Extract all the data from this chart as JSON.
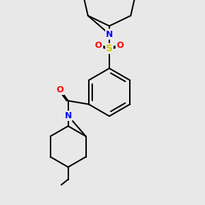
{
  "bg_color": "#e8e8e8",
  "bond_color": "#000000",
  "bond_width": 1.5,
  "atom_colors": {
    "N": "#0000ff",
    "O": "#ff0000",
    "S": "#cccc00",
    "C": "#000000"
  },
  "font_size": 9
}
